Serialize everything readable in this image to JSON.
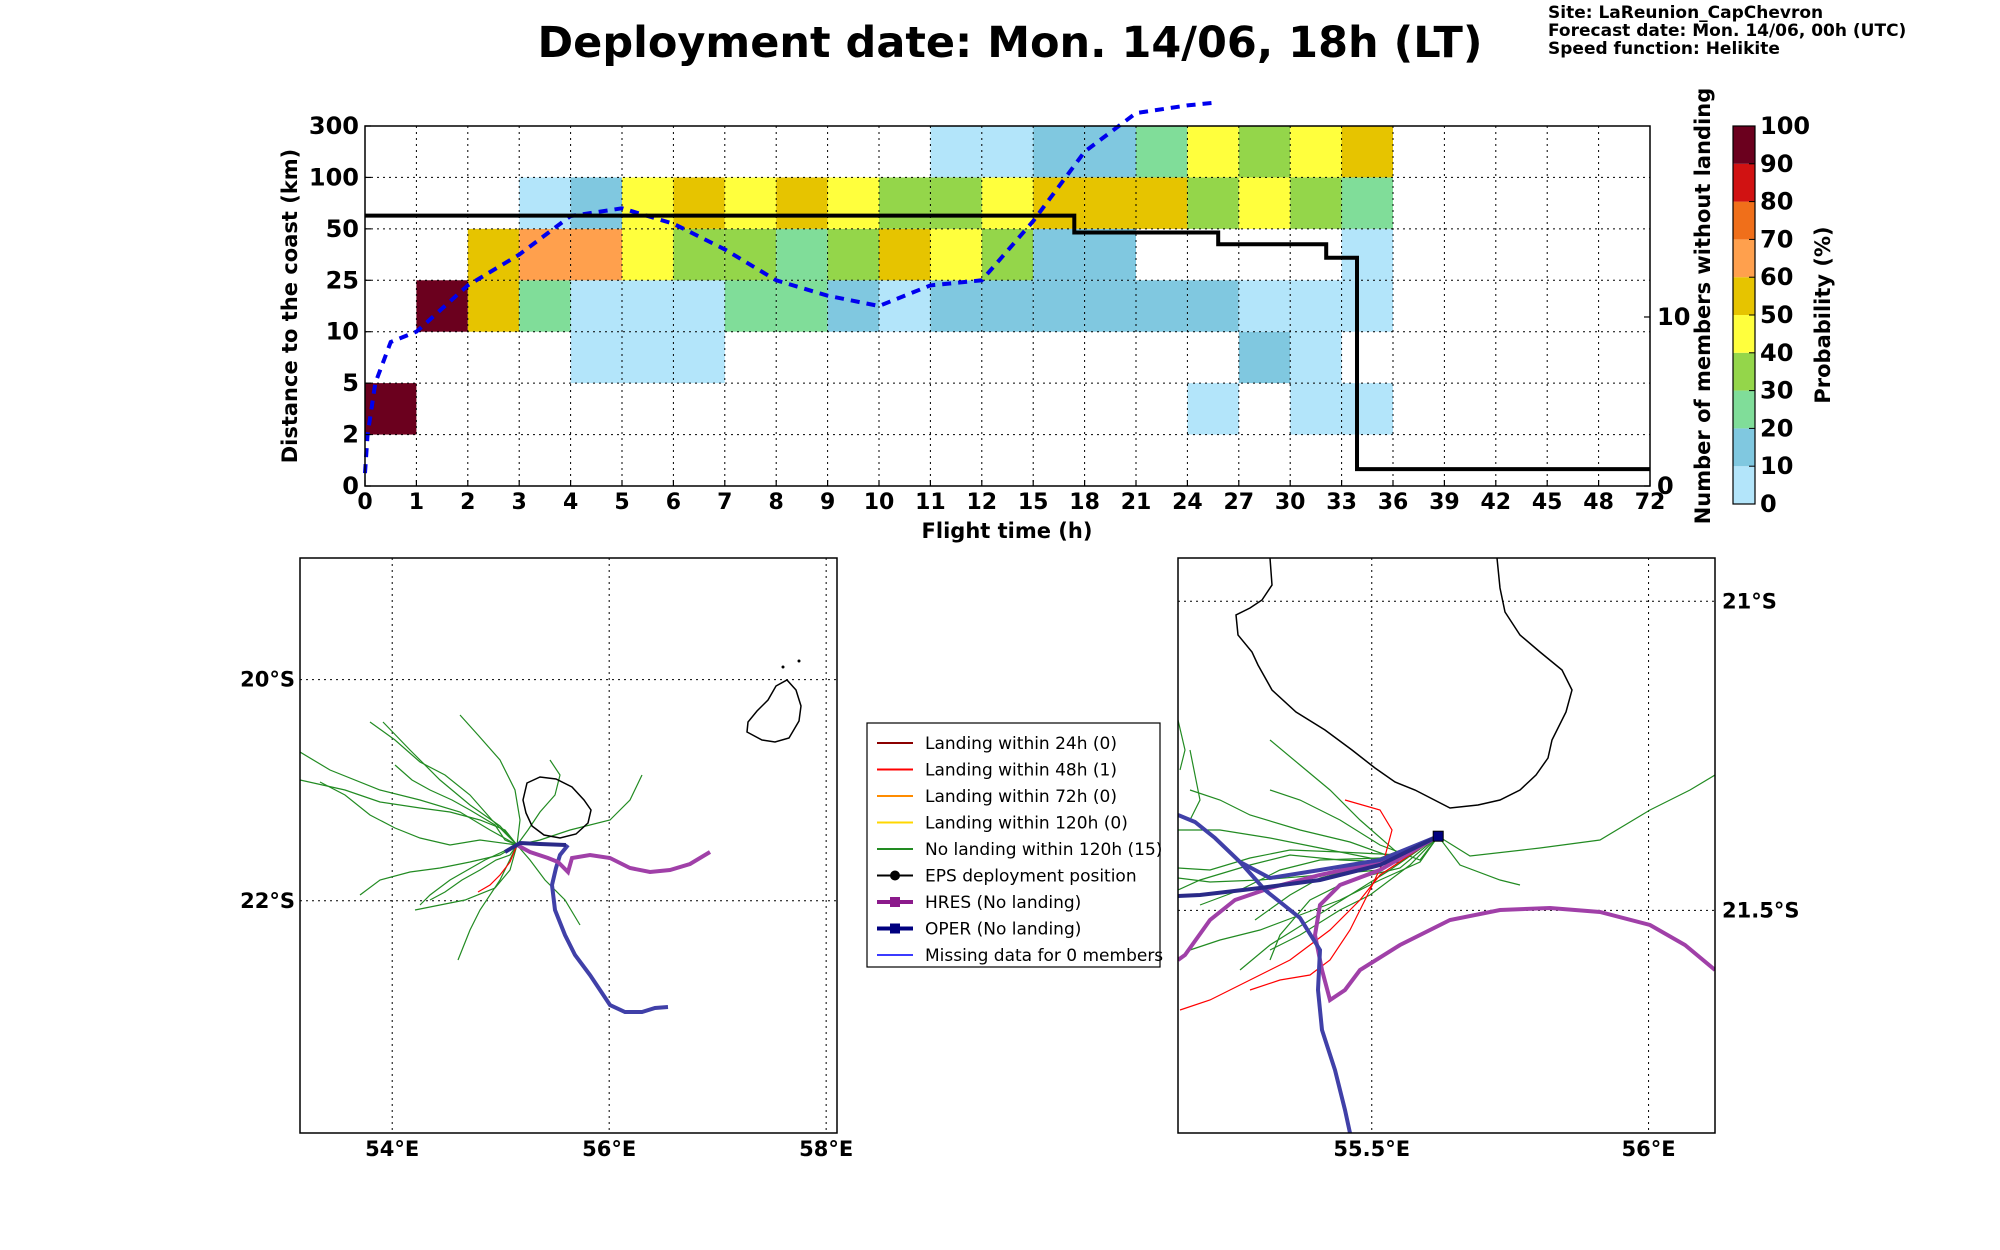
{
  "header": {
    "title": "Deployment date: Mon. 14/06, 18h (LT)",
    "site": "Site: LaReunion_CapChevron",
    "forecast": "Forecast date: Mon. 14/06, 00h (UTC)",
    "speed": "Speed function: Helikite"
  },
  "chart_data": [
    {
      "type": "heatmap",
      "xlabel": "Flight time (h)",
      "ylabel": "Distance to the coast (km)",
      "ylabel_right": "Number of members without landing",
      "colorbar_label": "Probability (%)",
      "x_ticks": [
        "0",
        "1",
        "2",
        "3",
        "4",
        "5",
        "6",
        "7",
        "8",
        "9",
        "10",
        "11",
        "12",
        "15",
        "18",
        "21",
        "24",
        "27",
        "30",
        "33",
        "36",
        "39",
        "42",
        "45",
        "48",
        "72"
      ],
      "y_ticks": [
        "0",
        "2",
        "5",
        "10",
        "25",
        "50",
        "100",
        "300"
      ],
      "y_right_ticks": [
        "0",
        "10"
      ],
      "colorbar_ticks": [
        "0",
        "10",
        "20",
        "30",
        "40",
        "50",
        "60",
        "70",
        "80",
        "90",
        "100"
      ],
      "colorbar_colors": [
        "#b3e5fa",
        "#80c8e0",
        "#80dd99",
        "#94d64a",
        "#ffff3d",
        "#e6c400",
        "#ffa04d",
        "#f06f1a",
        "#d11212",
        "#6b001e"
      ],
      "cells": [
        {
          "t": 0,
          "row": 1,
          "p": 95
        },
        {
          "t": 1,
          "row": 3,
          "p": 95
        },
        {
          "t": 2,
          "row": 3,
          "p": 55
        },
        {
          "t": 2,
          "row": 4,
          "p": 55
        },
        {
          "t": 3,
          "row": 3,
          "p": 25
        },
        {
          "t": 3,
          "row": 4,
          "p": 65
        },
        {
          "t": 3,
          "row": 5,
          "p": 5
        },
        {
          "t": 4,
          "row": 2,
          "p": 5
        },
        {
          "t": 4,
          "row": 3,
          "p": 5
        },
        {
          "t": 4,
          "row": 4,
          "p": 65
        },
        {
          "t": 4,
          "row": 5,
          "p": 15
        },
        {
          "t": 5,
          "row": 2,
          "p": 5
        },
        {
          "t": 5,
          "row": 3,
          "p": 5
        },
        {
          "t": 5,
          "row": 4,
          "p": 45
        },
        {
          "t": 5,
          "row": 5,
          "p": 45
        },
        {
          "t": 6,
          "row": 2,
          "p": 5
        },
        {
          "t": 6,
          "row": 3,
          "p": 5
        },
        {
          "t": 6,
          "row": 4,
          "p": 35
        },
        {
          "t": 6,
          "row": 5,
          "p": 55
        },
        {
          "t": 7,
          "row": 3,
          "p": 25
        },
        {
          "t": 7,
          "row": 4,
          "p": 35
        },
        {
          "t": 7,
          "row": 5,
          "p": 45
        },
        {
          "t": 8,
          "row": 3,
          "p": 25
        },
        {
          "t": 8,
          "row": 4,
          "p": 25
        },
        {
          "t": 8,
          "row": 5,
          "p": 55
        },
        {
          "t": 9,
          "row": 3,
          "p": 15
        },
        {
          "t": 9,
          "row": 4,
          "p": 35
        },
        {
          "t": 9,
          "row": 5,
          "p": 45
        },
        {
          "t": 10,
          "row": 3,
          "p": 5
        },
        {
          "t": 10,
          "row": 4,
          "p": 55
        },
        {
          "t": 10,
          "row": 5,
          "p": 35
        },
        {
          "t": 11,
          "row": 3,
          "p": 15
        },
        {
          "t": 11,
          "row": 4,
          "p": 45
        },
        {
          "t": 11,
          "row": 5,
          "p": 35
        },
        {
          "t": 11,
          "row": 6,
          "p": 5
        },
        {
          "t": 12,
          "row": 3,
          "p": 15
        },
        {
          "t": 12,
          "row": 4,
          "p": 35
        },
        {
          "t": 12,
          "row": 5,
          "p": 45
        },
        {
          "t": 12,
          "row": 6,
          "p": 5
        },
        {
          "t": 13,
          "row": 3,
          "p": 15
        },
        {
          "t": 13,
          "row": 4,
          "p": 15
        },
        {
          "t": 13,
          "row": 5,
          "p": 55
        },
        {
          "t": 13,
          "row": 6,
          "p": 15
        },
        {
          "t": 14,
          "row": 3,
          "p": 15
        },
        {
          "t": 14,
          "row": 4,
          "p": 15
        },
        {
          "t": 14,
          "row": 5,
          "p": 55
        },
        {
          "t": 14,
          "row": 6,
          "p": 15
        },
        {
          "t": 15,
          "row": 3,
          "p": 15
        },
        {
          "t": 15,
          "row": 5,
          "p": 55
        },
        {
          "t": 15,
          "row": 6,
          "p": 25
        },
        {
          "t": 16,
          "row": 1,
          "p": 5
        },
        {
          "t": 16,
          "row": 3,
          "p": 15
        },
        {
          "t": 16,
          "row": 5,
          "p": 35
        },
        {
          "t": 16,
          "row": 6,
          "p": 45
        },
        {
          "t": 17,
          "row": 2,
          "p": 15
        },
        {
          "t": 17,
          "row": 3,
          "p": 5
        },
        {
          "t": 17,
          "row": 5,
          "p": 45
        },
        {
          "t": 17,
          "row": 6,
          "p": 35
        },
        {
          "t": 18,
          "row": 1,
          "p": 5
        },
        {
          "t": 18,
          "row": 2,
          "p": 5
        },
        {
          "t": 18,
          "row": 3,
          "p": 5
        },
        {
          "t": 18,
          "row": 5,
          "p": 35
        },
        {
          "t": 18,
          "row": 6,
          "p": 45
        },
        {
          "t": 19,
          "row": 1,
          "p": 5
        },
        {
          "t": 19,
          "row": 3,
          "p": 5
        },
        {
          "t": 19,
          "row": 4,
          "p": 5
        },
        {
          "t": 19,
          "row": 5,
          "p": 25
        },
        {
          "t": 19,
          "row": 6,
          "p": 55
        }
      ],
      "series": [
        {
          "name": "mean distance",
          "line": "dashed",
          "color": "#0000ee",
          "points": [
            [
              0,
              0.5
            ],
            [
              0.05,
              2
            ],
            [
              0.2,
              4
            ],
            [
              0.5,
              5.6
            ],
            [
              1,
              6
            ],
            [
              2,
              7.8
            ],
            [
              3,
              9
            ],
            [
              4,
              10.5
            ],
            [
              5,
              10.8
            ],
            [
              6,
              10.2
            ],
            [
              7,
              9.2
            ],
            [
              8,
              8
            ],
            [
              9,
              7.4
            ],
            [
              10,
              7
            ],
            [
              11,
              7.8
            ],
            [
              12,
              8
            ],
            [
              13,
              10.3
            ],
            [
              14,
              13
            ],
            [
              15,
              14.5
            ],
            [
              16,
              14.8
            ],
            [
              16.5,
              14.9
            ]
          ]
        },
        {
          "name": "members without landing",
          "line": "step",
          "color": "#000000",
          "points": [
            [
              0,
              16
            ],
            [
              13.8,
              16
            ],
            [
              13.8,
              15
            ],
            [
              16.6,
              15
            ],
            [
              16.6,
              14.3
            ],
            [
              18.7,
              14.3
            ],
            [
              18.7,
              13.5
            ],
            [
              19.3,
              13.5
            ],
            [
              19.3,
              1
            ],
            [
              25,
              1
            ]
          ]
        }
      ]
    },
    {
      "type": "map",
      "xlim": [
        53.15,
        58.1
      ],
      "ylim": [
        -24.1,
        -18.9
      ],
      "x_ticks": [
        "54°E",
        "56°E",
        "58°E"
      ],
      "y_ticks": [
        "20°S",
        "22°S"
      ]
    },
    {
      "type": "map",
      "xlim": [
        55.15,
        56.12
      ],
      "ylim": [
        -21.86,
        -20.93
      ],
      "x_ticks": [
        "55.5°E",
        "56°E"
      ],
      "y_ticks": [
        "21°S",
        "21.5°S"
      ],
      "deployment": [
        55.62,
        -21.38
      ]
    }
  ],
  "legend": {
    "items": [
      {
        "label": "Landing within 24h (0)",
        "color": "#8b0000",
        "style": "line"
      },
      {
        "label": "Landing within 48h (1)",
        "color": "#ff0000",
        "style": "line"
      },
      {
        "label": "Landing within 72h (0)",
        "color": "#ff8c00",
        "style": "line"
      },
      {
        "label": "Landing within 120h (0)",
        "color": "#ffd700",
        "style": "line"
      },
      {
        "label": "No landing within 120h (15)",
        "color": "#228b22",
        "style": "line"
      },
      {
        "label": "EPS deployment position",
        "color": "#000000",
        "style": "marker-circle"
      },
      {
        "label": "HRES (No landing)",
        "color": "#8b1a8b",
        "style": "marker-square-thick"
      },
      {
        "label": "OPER (No landing)",
        "color": "#00007f",
        "style": "marker-square-thick"
      },
      {
        "label": "Missing data for 0 members",
        "color": "#3b3bff",
        "style": "line"
      }
    ]
  }
}
